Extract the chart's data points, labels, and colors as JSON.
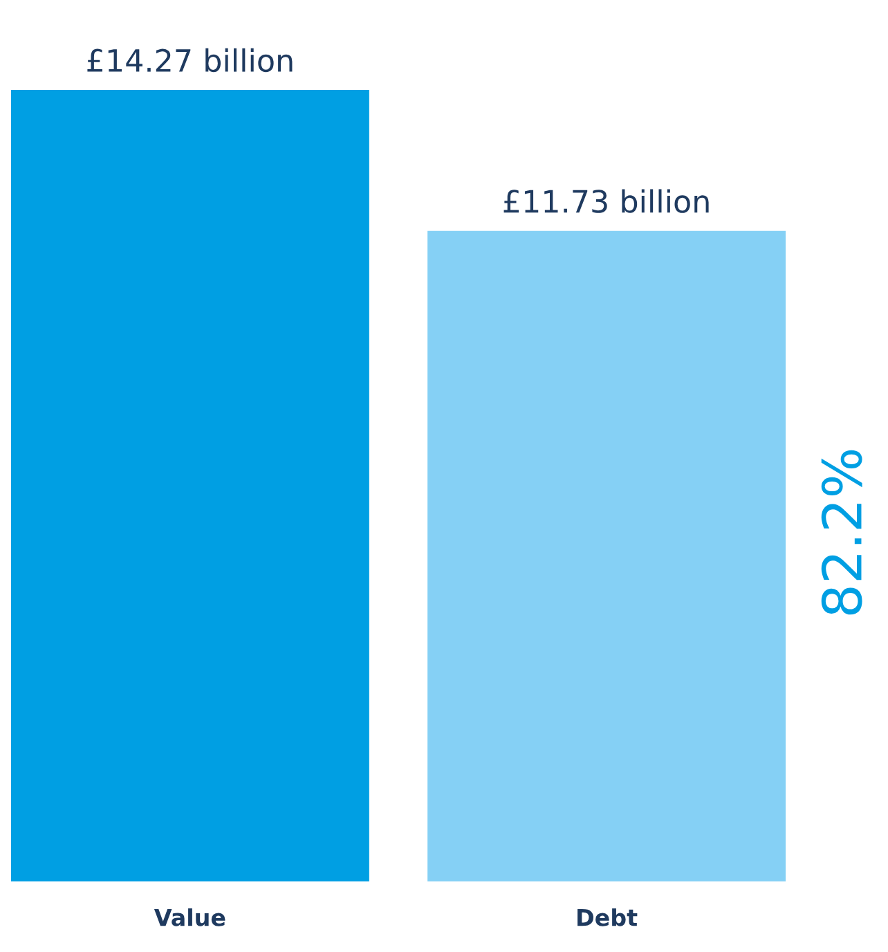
{
  "chart_data": {
    "type": "bar",
    "categories": [
      "Value",
      "Debt"
    ],
    "values": [
      14.27,
      11.73
    ],
    "colors": [
      "#009fe3",
      "#85d0f5"
    ],
    "value_labels": [
      "£14.27 billion",
      "£11.73 billion"
    ],
    "annotations": [
      "82.2%"
    ]
  }
}
